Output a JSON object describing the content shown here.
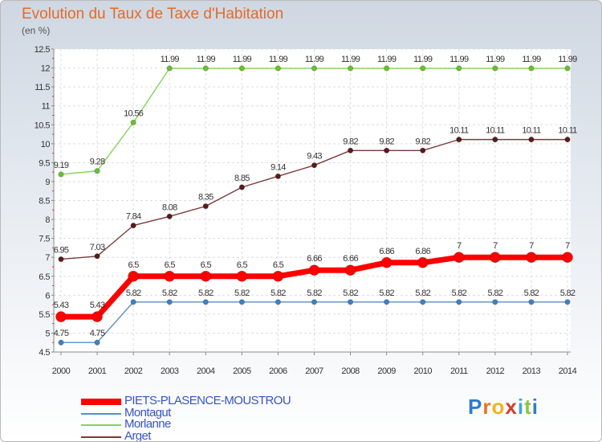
{
  "title": "Evolution du Taux de Taxe d'Habitation",
  "subtitle": "(en %)",
  "brand": {
    "letters": [
      "P",
      "r",
      "o",
      "x",
      "i",
      "t",
      "i"
    ],
    "colors": [
      "#2f7bd0",
      "#e8741e",
      "#f0b41c",
      "#d63c2a",
      "#3aa6d8",
      "#8cc63f",
      "#2f7bd0"
    ]
  },
  "chart_data": {
    "type": "line",
    "x": [
      "2000",
      "2001",
      "2002",
      "2003",
      "2004",
      "2005",
      "2006",
      "2007",
      "2008",
      "2009",
      "2010",
      "2011",
      "2012",
      "2013",
      "2014"
    ],
    "ylim": [
      4.5,
      12.5
    ],
    "yticks": [
      "4.5",
      "5",
      "5.5",
      "6",
      "6.5",
      "7",
      "7.5",
      "8",
      "8.5",
      "9",
      "9.5",
      "10",
      "10.5",
      "11",
      "11.5",
      "12",
      "12.5"
    ],
    "grid": true,
    "legend_position": "bottom-left",
    "series": [
      {
        "name": "Morlanne",
        "color": "#84d45a",
        "marker": "#66c133",
        "width": 1.4,
        "r": 3.2,
        "values": [
          9.19,
          9.28,
          10.56,
          11.99,
          11.99,
          11.99,
          11.99,
          11.99,
          11.99,
          11.99,
          11.99,
          11.99,
          11.99,
          11.99,
          11.99
        ],
        "labels": [
          "9.19",
          "9.28",
          "10.56",
          "11.99",
          "11.99",
          "11.99",
          "11.99",
          "11.99",
          "11.99",
          "11.99",
          "11.99",
          "11.99",
          "11.99",
          "11.99",
          "11.99"
        ]
      },
      {
        "name": "Arget",
        "color": "#7a3b3b",
        "marker": "#5a1a1a",
        "width": 1.4,
        "r": 3.2,
        "values": [
          6.95,
          7.03,
          7.84,
          8.08,
          8.35,
          8.85,
          9.14,
          9.43,
          9.82,
          9.82,
          9.82,
          10.11,
          10.11,
          10.11,
          10.11
        ],
        "labels": [
          "6.95",
          "7.03",
          "7.84",
          "8.08",
          "8.35",
          "8.85",
          "9.14",
          "9.43",
          "9.82",
          "9.82",
          "9.82",
          "10.11",
          "10.11",
          "10.11",
          "10.11"
        ]
      },
      {
        "name": "Montagut",
        "color": "#5a8fc2",
        "marker": "#3f80c4",
        "width": 1.4,
        "r": 3.2,
        "values": [
          4.75,
          4.75,
          5.82,
          5.82,
          5.82,
          5.82,
          5.82,
          5.82,
          5.82,
          5.82,
          5.82,
          5.82,
          5.82,
          5.82,
          5.82
        ],
        "labels": [
          "4.75",
          "4.75",
          "5.82",
          "5.82",
          "5.82",
          "5.82",
          "5.82",
          "5.82",
          "5.82",
          "5.82",
          "5.82",
          "5.82",
          "5.82",
          "5.82",
          "5.82"
        ]
      },
      {
        "name": "PIETS-PLASENCE-MOUSTROU",
        "color": "#ff0000",
        "marker": "#ff0000",
        "width": 7,
        "r": 6.5,
        "values": [
          5.43,
          5.43,
          6.5,
          6.5,
          6.5,
          6.5,
          6.5,
          6.66,
          6.66,
          6.86,
          6.86,
          7,
          7,
          7,
          7
        ],
        "labels": [
          "5.43",
          "5.43",
          "6.5",
          "6.5",
          "6.5",
          "6.5",
          "6.5",
          "6.66",
          "6.66",
          "6.86",
          "6.86",
          "7",
          "7",
          "7",
          "7"
        ]
      }
    ],
    "legend_order": [
      3,
      2,
      0,
      1
    ]
  }
}
